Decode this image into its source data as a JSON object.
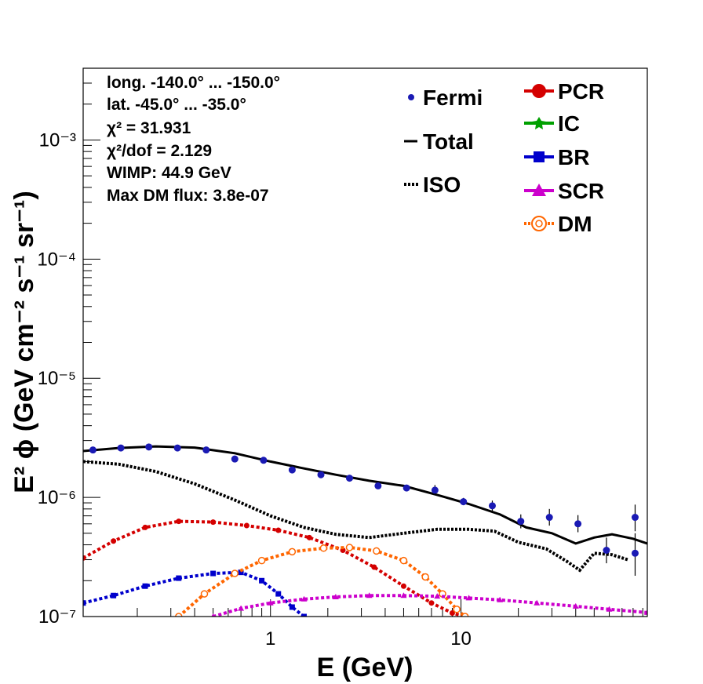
{
  "chart_data": {
    "type": "scatter",
    "xlabel": "E (GeV)",
    "ylabel": "E² ϕ (GeV cm⁻² s⁻¹ sr⁻¹)",
    "xscale": "log",
    "yscale": "log",
    "xlim": [
      0.104,
      95
    ],
    "ylim": [
      1e-07,
      0.004
    ],
    "x_ticklabels": [
      "1",
      "10"
    ],
    "y_ticklabels": [
      "10⁻⁷",
      "10⁻⁶",
      "10⁻⁵",
      "10⁻⁴",
      "10⁻³"
    ],
    "info_lines": [
      "long. -140.0° ... -150.0°",
      "lat. -45.0° ... -35.0°",
      "χ² = 31.931",
      "χ²/dof = 2.129",
      "WIMP: 44.9 GeV",
      "Max DM flux: 3.8e-07"
    ],
    "legend_left": [
      {
        "label": "Fermi",
        "style": "point",
        "color": "#1a1ab4"
      },
      {
        "label": "Total",
        "style": "line",
        "color": "#000000"
      },
      {
        "label": "ISO",
        "style": "dotted",
        "color": "#000000"
      }
    ],
    "legend_right": [
      {
        "label": "PCR",
        "style": "circle",
        "color": "#d40000"
      },
      {
        "label": "IC",
        "style": "star",
        "color": "#00a000"
      },
      {
        "label": "BR",
        "style": "square",
        "color": "#0000cc"
      },
      {
        "label": "SCR",
        "style": "triangle",
        "color": "#cc00cc"
      },
      {
        "label": "DM",
        "style": "open-circle",
        "color": "#ff6600"
      }
    ],
    "fermi": {
      "x": [
        0.117,
        0.164,
        0.23,
        0.325,
        0.46,
        0.65,
        0.92,
        1.3,
        1.84,
        2.6,
        3.67,
        5.18,
        7.3,
        10.3,
        14.6,
        20.6,
        29.1,
        41.1,
        58.0,
        82.0
      ],
      "y": [
        2.5e-06,
        2.6e-06,
        2.65e-06,
        2.6e-06,
        2.5e-06,
        2.1e-06,
        2.05e-06,
        1.7e-06,
        1.55e-06,
        1.45e-06,
        1.25e-06,
        1.2e-06,
        1.15e-06,
        9.2e-07,
        8.5e-07,
        6.3e-07,
        6.8e-07,
        6e-07,
        3.6e-07,
        3.4e-07
      ],
      "err_high": [
        0,
        0,
        0,
        0,
        0,
        0,
        0,
        0,
        0,
        0,
        0,
        0,
        1.2e-07,
        7e-08,
        9e-08,
        9e-08,
        1.2e-07,
        1.1e-07,
        1e-07,
        1.6e-07
      ],
      "err_low": [
        0,
        0,
        0,
        0,
        0,
        0,
        0,
        0,
        0,
        0,
        0,
        0,
        1e-07,
        6e-08,
        8e-08,
        8e-08,
        1e-07,
        9e-08,
        8e-08,
        1.2e-07
      ],
      "extra_x": [
        82.0
      ],
      "extra_y": [
        6.8e-07
      ]
    },
    "series": [
      {
        "name": "Total",
        "style": "solid",
        "color": "#000000",
        "x": [
          0.104,
          0.16,
          0.25,
          0.4,
          0.65,
          1.0,
          1.5,
          2.2,
          3.3,
          5.0,
          7.5,
          11,
          16,
          22,
          30,
          40,
          50,
          62,
          80,
          95
        ],
        "y": [
          2.45e-06,
          2.6e-06,
          2.68e-06,
          2.62e-06,
          2.35e-06,
          2e-06,
          1.75e-06,
          1.55e-06,
          1.38e-06,
          1.25e-06,
          1.05e-06,
          8.8e-07,
          7.2e-07,
          5.6e-07,
          5e-07,
          4.1e-07,
          4.6e-07,
          4.9e-07,
          4.5e-07,
          4.1e-07
        ]
      },
      {
        "name": "ISO",
        "style": "dotted",
        "color": "#000000",
        "x": [
          0.104,
          0.16,
          0.25,
          0.4,
          0.65,
          1.0,
          1.5,
          2.2,
          3.3,
          5.0,
          7.5,
          11,
          15,
          20,
          28,
          36,
          42,
          50,
          62,
          75
        ],
        "y": [
          2e-06,
          1.9e-06,
          1.65e-06,
          1.3e-06,
          9.5e-07,
          7e-07,
          5.6e-07,
          4.9e-07,
          4.6e-07,
          5e-07,
          5.4e-07,
          5.4e-07,
          5.2e-07,
          4.2e-07,
          3.7e-07,
          2.9e-07,
          2.45e-07,
          3.4e-07,
          3.3e-07,
          3e-07
        ]
      }
    ],
    "components": [
      {
        "name": "PCR",
        "color": "#d40000",
        "marker": "circle",
        "x": [
          0.104,
          0.15,
          0.22,
          0.33,
          0.5,
          0.75,
          1.1,
          1.6,
          2.4,
          3.5,
          5.0,
          7.0,
          9.0,
          10.5
        ],
        "y": [
          3.1e-07,
          4.3e-07,
          5.6e-07,
          6.3e-07,
          6.2e-07,
          5.8e-07,
          5.3e-07,
          4.6e-07,
          3.6e-07,
          2.6e-07,
          1.8e-07,
          1.3e-07,
          1.07e-07,
          1e-07
        ]
      },
      {
        "name": "BR",
        "color": "#0000cc",
        "marker": "square",
        "x": [
          0.104,
          0.15,
          0.22,
          0.33,
          0.5,
          0.7,
          0.9,
          1.1,
          1.3,
          1.5
        ],
        "y": [
          1.3e-07,
          1.5e-07,
          1.8e-07,
          2.1e-07,
          2.3e-07,
          2.35e-07,
          2e-07,
          1.55e-07,
          1.2e-07,
          1e-07
        ]
      },
      {
        "name": "DM",
        "color": "#ff6600",
        "marker": "open-circle",
        "x": [
          0.33,
          0.45,
          0.65,
          0.9,
          1.3,
          1.9,
          2.6,
          3.6,
          5.0,
          6.5,
          8.0,
          9.5,
          10.5
        ],
        "y": [
          1e-07,
          1.55e-07,
          2.3e-07,
          2.95e-07,
          3.5e-07,
          3.75e-07,
          3.8e-07,
          3.55e-07,
          2.95e-07,
          2.15e-07,
          1.55e-07,
          1.15e-07,
          1e-07
        ]
      },
      {
        "name": "SCR",
        "color": "#cc00cc",
        "marker": "triangle",
        "x": [
          0.5,
          0.7,
          1.0,
          1.5,
          2.2,
          3.3,
          5.0,
          7.5,
          11,
          16,
          25,
          40,
          60,
          95
        ],
        "y": [
          1e-07,
          1.17e-07,
          1.3e-07,
          1.4e-07,
          1.46e-07,
          1.5e-07,
          1.5e-07,
          1.48e-07,
          1.43e-07,
          1.38e-07,
          1.3e-07,
          1.22e-07,
          1.15e-07,
          1.08e-07
        ]
      }
    ]
  }
}
